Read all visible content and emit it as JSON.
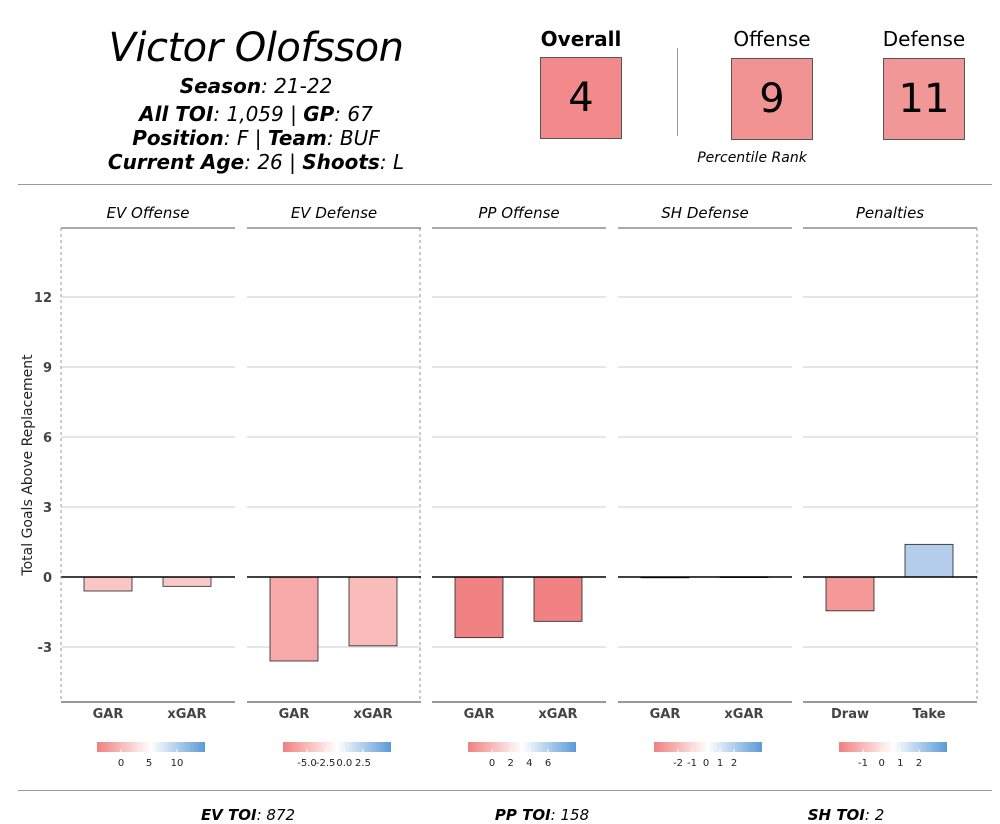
{
  "player": {
    "name": "Victor Olofsson",
    "season_label": "Season",
    "season": "21-22",
    "toi_label": "All TOI",
    "toi": "1,059",
    "gp_label": "GP",
    "gp": "67",
    "position_label": "Position",
    "position": "F",
    "team_label": "Team",
    "team": "BUF",
    "age_label": "Current Age",
    "age": "26",
    "shoots_label": "Shoots",
    "shoots": "L"
  },
  "ranks": {
    "overall_label": "Overall",
    "overall": "4",
    "overall_color": "#f28a8b",
    "offense_label": "Offense",
    "offense": "9",
    "offense_color": "#f29393",
    "defense_label": "Defense",
    "defense": "11",
    "defense_color": "#f29797",
    "caption": "Percentile Rank"
  },
  "chart_data": {
    "type": "bar",
    "ylabel": "Total Goals Above Replacement",
    "yticks": [
      -3,
      0,
      3,
      6,
      9,
      12
    ],
    "ylim": [
      -5.4,
      14.9
    ],
    "grid": true,
    "panels": [
      {
        "title": "EV Offense",
        "bars": [
          {
            "label": "GAR",
            "value": -0.6,
            "color": "#f9c5c5"
          },
          {
            "label": "xGAR",
            "value": -0.4,
            "color": "#f9c9c9"
          }
        ],
        "legend_ticks": [
          "0",
          "5",
          "10"
        ]
      },
      {
        "title": "EV Defense",
        "bars": [
          {
            "label": "GAR",
            "value": -3.6,
            "color": "#f7a9a9"
          },
          {
            "label": "xGAR",
            "value": -2.95,
            "color": "#f9bcbb"
          }
        ],
        "legend_ticks": [
          "-5.0",
          "-2.5",
          "0.0",
          "2.5"
        ]
      },
      {
        "title": "PP Offense",
        "bars": [
          {
            "label": "GAR",
            "value": -2.6,
            "color": "#f08283"
          },
          {
            "label": "xGAR",
            "value": -1.9,
            "color": "#f08283"
          }
        ],
        "legend_ticks": [
          "0",
          "2",
          "4",
          "6"
        ]
      },
      {
        "title": "SH Defense",
        "bars": [
          {
            "label": "GAR",
            "value": -0.03,
            "color": "#fdf4f4"
          },
          {
            "label": "xGAR",
            "value": 0.01,
            "color": "#ffffff"
          }
        ],
        "legend_ticks": [
          "-2",
          "-1",
          "0",
          "1",
          "2"
        ]
      },
      {
        "title": "Penalties",
        "bars": [
          {
            "label": "Draw",
            "value": -1.45,
            "color": "#f49898"
          },
          {
            "label": "Take",
            "value": 1.4,
            "color": "#b3cdea"
          }
        ],
        "legend_ticks": [
          "-1",
          "0",
          "1",
          "2"
        ]
      }
    ]
  },
  "footer": {
    "ev_label": "EV TOI",
    "ev": "872",
    "pp_label": "PP TOI",
    "pp": "158",
    "sh_label": "SH TOI",
    "sh": "2"
  }
}
